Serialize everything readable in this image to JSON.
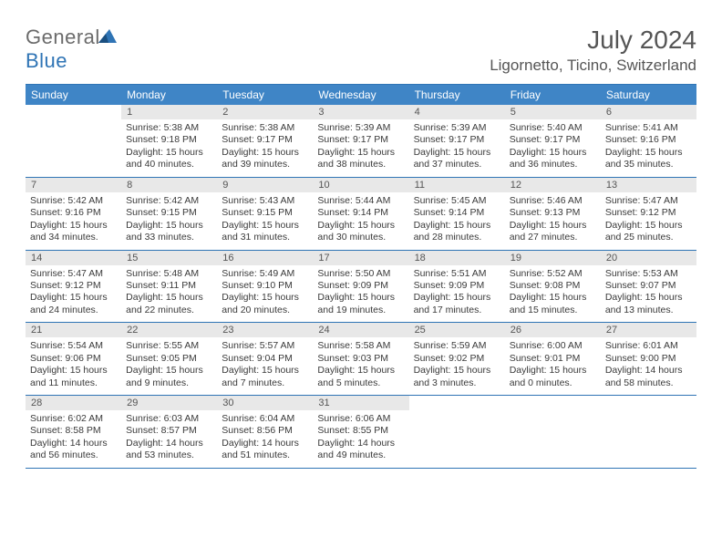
{
  "logo": {
    "text1": "General",
    "text2": "Blue",
    "color1": "#6b6b6b",
    "color2": "#2f74b5"
  },
  "title": "July 2024",
  "location": "Ligornetto, Ticino, Switzerland",
  "colors": {
    "header_bg": "#3f85c6",
    "border": "#2f74b5",
    "daynum_bg": "#e8e8e8",
    "text": "#3a3a3a"
  },
  "weekdays": [
    "Sunday",
    "Monday",
    "Tuesday",
    "Wednesday",
    "Thursday",
    "Friday",
    "Saturday"
  ],
  "weeks": [
    {
      "nums": [
        "",
        "1",
        "2",
        "3",
        "4",
        "5",
        "6"
      ],
      "cells": [
        null,
        {
          "sunrise": "Sunrise: 5:38 AM",
          "sunset": "Sunset: 9:18 PM",
          "daylight": "Daylight: 15 hours and 40 minutes."
        },
        {
          "sunrise": "Sunrise: 5:38 AM",
          "sunset": "Sunset: 9:17 PM",
          "daylight": "Daylight: 15 hours and 39 minutes."
        },
        {
          "sunrise": "Sunrise: 5:39 AM",
          "sunset": "Sunset: 9:17 PM",
          "daylight": "Daylight: 15 hours and 38 minutes."
        },
        {
          "sunrise": "Sunrise: 5:39 AM",
          "sunset": "Sunset: 9:17 PM",
          "daylight": "Daylight: 15 hours and 37 minutes."
        },
        {
          "sunrise": "Sunrise: 5:40 AM",
          "sunset": "Sunset: 9:17 PM",
          "daylight": "Daylight: 15 hours and 36 minutes."
        },
        {
          "sunrise": "Sunrise: 5:41 AM",
          "sunset": "Sunset: 9:16 PM",
          "daylight": "Daylight: 15 hours and 35 minutes."
        }
      ]
    },
    {
      "nums": [
        "7",
        "8",
        "9",
        "10",
        "11",
        "12",
        "13"
      ],
      "cells": [
        {
          "sunrise": "Sunrise: 5:42 AM",
          "sunset": "Sunset: 9:16 PM",
          "daylight": "Daylight: 15 hours and 34 minutes."
        },
        {
          "sunrise": "Sunrise: 5:42 AM",
          "sunset": "Sunset: 9:15 PM",
          "daylight": "Daylight: 15 hours and 33 minutes."
        },
        {
          "sunrise": "Sunrise: 5:43 AM",
          "sunset": "Sunset: 9:15 PM",
          "daylight": "Daylight: 15 hours and 31 minutes."
        },
        {
          "sunrise": "Sunrise: 5:44 AM",
          "sunset": "Sunset: 9:14 PM",
          "daylight": "Daylight: 15 hours and 30 minutes."
        },
        {
          "sunrise": "Sunrise: 5:45 AM",
          "sunset": "Sunset: 9:14 PM",
          "daylight": "Daylight: 15 hours and 28 minutes."
        },
        {
          "sunrise": "Sunrise: 5:46 AM",
          "sunset": "Sunset: 9:13 PM",
          "daylight": "Daylight: 15 hours and 27 minutes."
        },
        {
          "sunrise": "Sunrise: 5:47 AM",
          "sunset": "Sunset: 9:12 PM",
          "daylight": "Daylight: 15 hours and 25 minutes."
        }
      ]
    },
    {
      "nums": [
        "14",
        "15",
        "16",
        "17",
        "18",
        "19",
        "20"
      ],
      "cells": [
        {
          "sunrise": "Sunrise: 5:47 AM",
          "sunset": "Sunset: 9:12 PM",
          "daylight": "Daylight: 15 hours and 24 minutes."
        },
        {
          "sunrise": "Sunrise: 5:48 AM",
          "sunset": "Sunset: 9:11 PM",
          "daylight": "Daylight: 15 hours and 22 minutes."
        },
        {
          "sunrise": "Sunrise: 5:49 AM",
          "sunset": "Sunset: 9:10 PM",
          "daylight": "Daylight: 15 hours and 20 minutes."
        },
        {
          "sunrise": "Sunrise: 5:50 AM",
          "sunset": "Sunset: 9:09 PM",
          "daylight": "Daylight: 15 hours and 19 minutes."
        },
        {
          "sunrise": "Sunrise: 5:51 AM",
          "sunset": "Sunset: 9:09 PM",
          "daylight": "Daylight: 15 hours and 17 minutes."
        },
        {
          "sunrise": "Sunrise: 5:52 AM",
          "sunset": "Sunset: 9:08 PM",
          "daylight": "Daylight: 15 hours and 15 minutes."
        },
        {
          "sunrise": "Sunrise: 5:53 AM",
          "sunset": "Sunset: 9:07 PM",
          "daylight": "Daylight: 15 hours and 13 minutes."
        }
      ]
    },
    {
      "nums": [
        "21",
        "22",
        "23",
        "24",
        "25",
        "26",
        "27"
      ],
      "cells": [
        {
          "sunrise": "Sunrise: 5:54 AM",
          "sunset": "Sunset: 9:06 PM",
          "daylight": "Daylight: 15 hours and 11 minutes."
        },
        {
          "sunrise": "Sunrise: 5:55 AM",
          "sunset": "Sunset: 9:05 PM",
          "daylight": "Daylight: 15 hours and 9 minutes."
        },
        {
          "sunrise": "Sunrise: 5:57 AM",
          "sunset": "Sunset: 9:04 PM",
          "daylight": "Daylight: 15 hours and 7 minutes."
        },
        {
          "sunrise": "Sunrise: 5:58 AM",
          "sunset": "Sunset: 9:03 PM",
          "daylight": "Daylight: 15 hours and 5 minutes."
        },
        {
          "sunrise": "Sunrise: 5:59 AM",
          "sunset": "Sunset: 9:02 PM",
          "daylight": "Daylight: 15 hours and 3 minutes."
        },
        {
          "sunrise": "Sunrise: 6:00 AM",
          "sunset": "Sunset: 9:01 PM",
          "daylight": "Daylight: 15 hours and 0 minutes."
        },
        {
          "sunrise": "Sunrise: 6:01 AM",
          "sunset": "Sunset: 9:00 PM",
          "daylight": "Daylight: 14 hours and 58 minutes."
        }
      ]
    },
    {
      "nums": [
        "28",
        "29",
        "30",
        "31",
        "",
        "",
        ""
      ],
      "cells": [
        {
          "sunrise": "Sunrise: 6:02 AM",
          "sunset": "Sunset: 8:58 PM",
          "daylight": "Daylight: 14 hours and 56 minutes."
        },
        {
          "sunrise": "Sunrise: 6:03 AM",
          "sunset": "Sunset: 8:57 PM",
          "daylight": "Daylight: 14 hours and 53 minutes."
        },
        {
          "sunrise": "Sunrise: 6:04 AM",
          "sunset": "Sunset: 8:56 PM",
          "daylight": "Daylight: 14 hours and 51 minutes."
        },
        {
          "sunrise": "Sunrise: 6:06 AM",
          "sunset": "Sunset: 8:55 PM",
          "daylight": "Daylight: 14 hours and 49 minutes."
        },
        null,
        null,
        null
      ]
    }
  ]
}
